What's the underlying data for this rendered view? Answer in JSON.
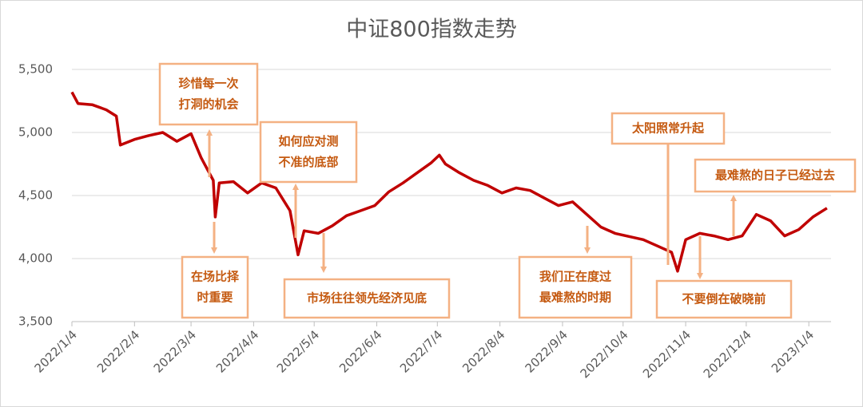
{
  "chart_data": {
    "type": "line",
    "title": "中证800指数走势",
    "x": [
      "2022/1/4",
      "2022/1/7",
      "2022/1/14",
      "2022/1/21",
      "2022/1/26",
      "2022/1/28",
      "2022/2/4",
      "2022/2/11",
      "2022/2/18",
      "2022/2/25",
      "2022/3/4",
      "2022/3/9",
      "2022/3/15",
      "2022/3/16",
      "2022/3/18",
      "2022/3/25",
      "2022/4/1",
      "2022/4/8",
      "2022/4/15",
      "2022/4/22",
      "2022/4/26",
      "2022/4/29",
      "2022/5/6",
      "2022/5/13",
      "2022/5/20",
      "2022/5/27",
      "2022/6/3",
      "2022/6/10",
      "2022/6/17",
      "2022/6/24",
      "2022/7/1",
      "2022/7/5",
      "2022/7/8",
      "2022/7/15",
      "2022/7/22",
      "2022/7/29",
      "2022/8/5",
      "2022/8/12",
      "2022/8/19",
      "2022/8/26",
      "2022/9/2",
      "2022/9/9",
      "2022/9/16",
      "2022/9/23",
      "2022/9/30",
      "2022/10/14",
      "2022/10/21",
      "2022/10/28",
      "2022/10/31",
      "2022/11/4",
      "2022/11/11",
      "2022/11/18",
      "2022/11/25",
      "2022/12/2",
      "2022/12/9",
      "2022/12/16",
      "2022/12/23",
      "2022/12/30",
      "2023/1/6",
      "2023/1/13"
    ],
    "series": [
      {
        "name": "中证800",
        "color": "#c00000",
        "values": [
          5320,
          5230,
          5220,
          5180,
          5130,
          4900,
          4945,
          4975,
          5000,
          4930,
          4990,
          4800,
          4620,
          4330,
          4600,
          4610,
          4520,
          4600,
          4560,
          4380,
          4030,
          4220,
          4200,
          4260,
          4340,
          4380,
          4420,
          4530,
          4600,
          4680,
          4760,
          4820,
          4750,
          4680,
          4620,
          4580,
          4520,
          4560,
          4540,
          4480,
          4420,
          4450,
          4350,
          4250,
          4200,
          4150,
          4100,
          4050,
          3900,
          4150,
          4200,
          4180,
          4150,
          4180,
          4350,
          4300,
          4180,
          4230,
          4330,
          4400
        ]
      }
    ],
    "xlim": [
      "2022/1/4",
      "2023/1/15"
    ],
    "xticks": [
      "2022/1/4",
      "2022/2/4",
      "2022/3/4",
      "2022/4/4",
      "2022/5/4",
      "2022/6/4",
      "2022/7/4",
      "2022/8/4",
      "2022/9/4",
      "2022/10/4",
      "2022/11/4",
      "2022/12/4",
      "2023/1/4"
    ],
    "ylim": [
      3500,
      5500
    ],
    "yticks": [
      {
        "value": 3500,
        "label": "3,500"
      },
      {
        "value": 4000,
        "label": "4,000"
      },
      {
        "value": 4500,
        "label": "4,500"
      },
      {
        "value": 5000,
        "label": "5,000"
      },
      {
        "value": 5500,
        "label": "5,500"
      }
    ],
    "grid": true,
    "annotations": [
      {
        "lines": [
          "珍惜每一次",
          "打洞的机会"
        ]
      },
      {
        "lines": [
          "在场比择",
          "时重要"
        ]
      },
      {
        "lines": [
          "如何应对测",
          "不准的底部"
        ]
      },
      {
        "lines": [
          "市场往往领先经济见底"
        ]
      },
      {
        "lines": [
          "我们正在度过",
          "最难熬的时期"
        ]
      },
      {
        "lines": [
          "太阳照常升起"
        ]
      },
      {
        "lines": [
          "不要倒在破晓前"
        ]
      },
      {
        "lines": [
          "最难熬的日子已经过去"
        ]
      }
    ]
  }
}
